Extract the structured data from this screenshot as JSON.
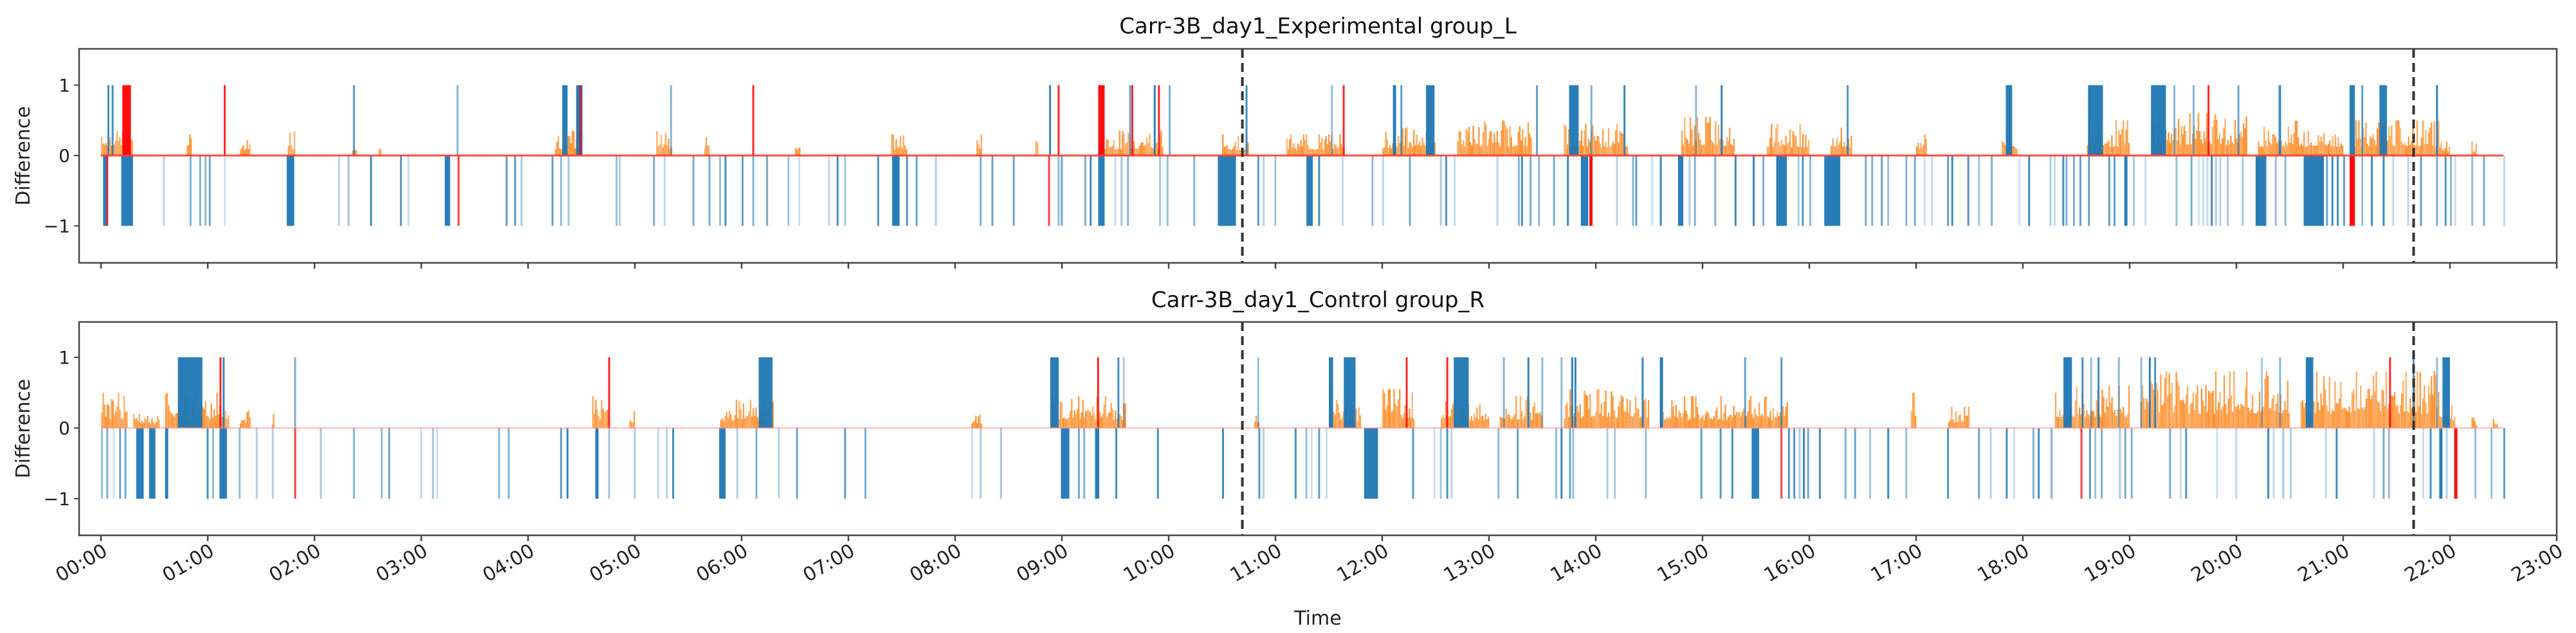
{
  "chart_data": [
    {
      "type": "bar",
      "title": "Carr-3B_day1_Experimental group_L",
      "ylabel": "Difference",
      "xlabel": "",
      "ylim": [
        -1.5,
        1.5
      ],
      "xlim_hours": [
        0,
        23
      ],
      "yticks": [
        "1",
        "0",
        "−1"
      ],
      "ytick_values": [
        1,
        0,
        -1
      ],
      "baseline_color": "#ff3b30",
      "baseline_opacity": 0.9,
      "data_end_hour": 22.5,
      "dashed_lines_hours": [
        10.69,
        21.66
      ],
      "blue_up": [
        0.06,
        0.1,
        2.36,
        3.33,
        [
          4.32,
          4.37
        ],
        [
          4.45,
          4.51
        ],
        5.33,
        8.88,
        9.63,
        9.86,
        10.0,
        10.72,
        11.52,
        [
          12.1,
          12.13
        ],
        12.17,
        [
          12.41,
          12.49
        ],
        13.44,
        [
          13.75,
          13.84
        ],
        13.95,
        14.26,
        14.93,
        15.17,
        16.35,
        [
          17.84,
          17.9
        ],
        [
          18.61,
          18.75
        ],
        [
          19.2,
          19.34
        ],
        19.41,
        19.59,
        20.01,
        20.39,
        20.4,
        [
          21.06,
          21.11
        ],
        21.17,
        [
          21.34,
          21.41
        ],
        21.87
      ],
      "blue_down": [
        [
          0.02,
          0.06
        ],
        [
          0.19,
          0.3
        ],
        0.58,
        0.83,
        0.92,
        0.97,
        1.01,
        1.15,
        [
          1.74,
          1.81
        ],
        2.22,
        2.31,
        2.52,
        2.8,
        2.87,
        [
          3.22,
          3.27
        ],
        3.79,
        3.87,
        3.93,
        4.22,
        4.3,
        4.37,
        4.82,
        4.85,
        5.17,
        5.27,
        5.54,
        5.69,
        5.79,
        5.84,
        6.0,
        6.1,
        6.23,
        6.43,
        6.53,
        6.81,
        6.89,
        6.96,
        7.27,
        [
          7.41,
          7.48
        ],
        7.54,
        7.63,
        7.81,
        8.23,
        8.34,
        8.54,
        8.96,
        8.99,
        9.21,
        9.26,
        [
          9.34,
          9.4
        ],
        9.49,
        9.55,
        9.61,
        9.91,
        9.98,
        10.23,
        [
          10.46,
          10.63
        ],
        10.83,
        10.88,
        10.99,
        [
          11.29,
          11.35
        ],
        11.4,
        11.62,
        11.9,
        12.0,
        12.25,
        12.54,
        12.59,
        12.67,
        13.07,
        13.27,
        13.3,
        13.38,
        13.46,
        13.6,
        13.73,
        [
          13.86,
          13.93
        ],
        14.19,
        14.34,
        14.37,
        14.52,
        14.6,
        [
          14.77,
          14.82
        ],
        14.87,
        14.92,
        15.11,
        15.3,
        15.47,
        15.56,
        [
          15.69,
          15.79
        ],
        15.89,
        15.93,
        16.0,
        [
          16.14,
          16.29
        ],
        16.52,
        16.58,
        16.67,
        16.73,
        16.9,
        16.98,
        17.07,
        17.14,
        17.29,
        17.33,
        17.48,
        17.58,
        17.7,
        17.96,
        18.05,
        18.25,
        18.29,
        18.37,
        18.4,
        18.47,
        18.53,
        18.61,
        18.8,
        18.85,
        [
          18.95,
          18.98
        ],
        19.03,
        19.14,
        19.43,
        19.57,
        19.64,
        19.68,
        19.72,
        19.76,
        19.8,
        19.84,
        19.91,
        20.05,
        [
          20.18,
          20.28
        ],
        20.36,
        20.45,
        [
          20.63,
          20.82
        ],
        20.84,
        20.89,
        20.94,
        21.0,
        21.17,
        21.26,
        21.37,
        21.46,
        21.6,
        21.72,
        21.87,
        21.95,
        22.0,
        22.04,
        22.2,
        22.31,
        22.5
      ],
      "red_up": [
        [
          0.2,
          0.28
        ],
        1.15,
        4.48,
        6.1,
        8.96,
        [
          9.34,
          9.4
        ],
        9.65,
        9.9,
        11.63,
        19.73
      ],
      "red_down": [
        0.05,
        3.34,
        8.87,
        [
          13.94,
          13.97
        ],
        [
          21.06,
          21.11
        ]
      ],
      "activity_bursts": [
        [
          0,
          0.3,
          0.45
        ],
        [
          0.8,
          0.85,
          0.3
        ],
        [
          1.3,
          1.4,
          0.3
        ],
        [
          1.75,
          1.82,
          0.35
        ],
        [
          2.35,
          2.4,
          0.25
        ],
        [
          2.6,
          2.62,
          0.3
        ],
        [
          4.25,
          4.5,
          0.35
        ],
        [
          5.2,
          5.35,
          0.35
        ],
        [
          5.65,
          5.7,
          0.4
        ],
        [
          6.5,
          6.55,
          0.3
        ],
        [
          7.4,
          7.55,
          0.3
        ],
        [
          8.2,
          8.25,
          0.3
        ],
        [
          8.75,
          8.78,
          0.3
        ],
        [
          9.4,
          9.95,
          0.35
        ],
        [
          10.5,
          10.75,
          0.3
        ],
        [
          11.1,
          11.65,
          0.3
        ],
        [
          12.0,
          12.5,
          0.4
        ],
        [
          12.7,
          13.4,
          0.5
        ],
        [
          13.7,
          14.3,
          0.45
        ],
        [
          14.8,
          15.3,
          0.55
        ],
        [
          15.6,
          16.0,
          0.45
        ],
        [
          16.2,
          16.4,
          0.4
        ],
        [
          17.0,
          17.1,
          0.3
        ],
        [
          17.8,
          17.95,
          0.35
        ],
        [
          18.6,
          19.0,
          0.5
        ],
        [
          19.2,
          20.1,
          0.6
        ],
        [
          20.2,
          21.0,
          0.5
        ],
        [
          21.1,
          21.9,
          0.5
        ],
        [
          21.9,
          22.0,
          0.2
        ],
        [
          22.2,
          22.25,
          0.2
        ]
      ]
    },
    {
      "type": "bar",
      "title": "Carr-3B_day1_Control group_R",
      "ylabel": "Difference",
      "xlabel": "Time",
      "ylim": [
        -1.5,
        1.5
      ],
      "xlim_hours": [
        0,
        23
      ],
      "yticks": [
        "1",
        "0",
        "−1"
      ],
      "ytick_values": [
        1,
        0,
        -1
      ],
      "baseline_color": "#ff8a8a",
      "baseline_opacity": 0.45,
      "data_end_hour": 22.5,
      "dashed_lines_hours": [
        10.69,
        21.66
      ],
      "blue_up": [
        [
          0.72,
          0.95
        ],
        1.14,
        1.81,
        [
          6.16,
          6.29
        ],
        [
          8.89,
          8.97
        ],
        9.52,
        9.57,
        10.83,
        [
          11.5,
          11.54
        ],
        [
          11.64,
          11.75
        ],
        [
          12.67,
          12.81
        ],
        13.13,
        13.36,
        13.49,
        13.67,
        13.77,
        13.8,
        14.43,
        [
          14.6,
          14.63
        ],
        15.39,
        15.73,
        [
          18.38,
          18.46
        ],
        18.55,
        18.63,
        18.7,
        18.89,
        19.1,
        19.18,
        19.23,
        20.23,
        20.4,
        [
          20.65,
          20.72
        ],
        21.65,
        21.87,
        [
          21.93,
          22.0
        ]
      ],
      "blue_down": [
        0.0,
        0.05,
        0.11,
        0.17,
        0.22,
        [
          0.33,
          0.4
        ],
        [
          0.45,
          0.51
        ],
        [
          0.6,
          0.63
        ],
        0.99,
        1.04,
        [
          1.11,
          1.18
        ],
        1.29,
        1.45,
        1.6,
        2.05,
        2.36,
        2.62,
        2.69,
        2.99,
        3.1,
        3.14,
        3.72,
        3.81,
        4.3,
        4.36,
        [
          4.63,
          4.66
        ],
        4.75,
        4.99,
        5.21,
        5.29,
        5.35,
        [
          5.79,
          5.85
        ],
        5.95,
        6.13,
        6.34,
        6.51,
        6.96,
        7.15,
        8.15,
        8.23,
        8.42,
        [
          8.99,
          9.07
        ],
        9.15,
        9.2,
        [
          9.31,
          9.35
        ],
        9.5,
        9.89,
        10.5,
        10.84,
        10.88,
        11.18,
        11.28,
        11.33,
        11.4,
        11.47,
        [
          11.83,
          11.96
        ],
        12.28,
        12.48,
        12.54,
        12.6,
        12.64,
        13.08,
        13.26,
        13.62,
        13.67,
        13.75,
        13.78,
        14.1,
        14.17,
        14.46,
        14.98,
        15.16,
        15.27,
        [
          15.46,
          15.53
        ],
        15.8,
        15.85,
        15.9,
        15.94,
        15.98,
        16.09,
        16.33,
        16.42,
        16.56,
        16.73,
        16.9,
        17.29,
        17.58,
        17.69,
        17.84,
        17.91,
        18.09,
        18.14,
        18.26,
        18.62,
        18.67,
        18.73,
        18.9,
        18.95,
        19.01,
        19.37,
        19.47,
        19.52,
        19.81,
        19.99,
        20.29,
        20.34,
        20.43,
        20.5,
        20.83,
        20.93,
        21.28,
        21.37,
        21.42,
        21.74,
        21.81,
        [
          21.9,
          21.93
        ],
        21.96,
        22.23,
        22.38,
        22.5
      ],
      "red_up": [
        1.11,
        4.75,
        9.33,
        12.22,
        12.6,
        21.43
      ],
      "red_down": [
        1.81,
        15.73,
        18.54,
        [
          22.04,
          22.07
        ]
      ],
      "activity_bursts": [
        [
          0.0,
          0.25,
          0.5
        ],
        [
          0.3,
          0.55,
          0.2
        ],
        [
          0.6,
          1.2,
          0.5
        ],
        [
          1.3,
          1.4,
          0.25
        ],
        [
          1.6,
          1.62,
          0.2
        ],
        [
          4.6,
          4.75,
          0.45
        ],
        [
          4.95,
          5.0,
          0.3
        ],
        [
          5.8,
          6.3,
          0.4
        ],
        [
          8.15,
          8.25,
          0.2
        ],
        [
          8.9,
          9.6,
          0.45
        ],
        [
          10.8,
          10.85,
          0.3
        ],
        [
          11.5,
          11.8,
          0.4
        ],
        [
          12.0,
          12.3,
          0.55
        ],
        [
          12.55,
          13.0,
          0.4
        ],
        [
          13.1,
          13.5,
          0.45
        ],
        [
          13.7,
          14.5,
          0.55
        ],
        [
          14.6,
          15.8,
          0.45
        ],
        [
          16.95,
          17.0,
          0.5
        ],
        [
          17.3,
          17.5,
          0.3
        ],
        [
          18.3,
          19.0,
          0.6
        ],
        [
          19.1,
          20.5,
          0.8
        ],
        [
          20.6,
          21.9,
          0.8
        ],
        [
          21.9,
          22.05,
          0.4
        ],
        [
          22.2,
          22.25,
          0.15
        ],
        [
          22.4,
          22.45,
          0.15
        ]
      ]
    }
  ],
  "x_tick_labels": [
    "00:00",
    "01:00",
    "02:00",
    "03:00",
    "04:00",
    "05:00",
    "06:00",
    "07:00",
    "08:00",
    "09:00",
    "10:00",
    "11:00",
    "12:00",
    "13:00",
    "14:00",
    "15:00",
    "16:00",
    "17:00",
    "18:00",
    "19:00",
    "20:00",
    "21:00",
    "22:00",
    "23:00"
  ],
  "colors": {
    "blue": "#1f77b4",
    "orange": "#ff7f0e",
    "red": "#ff0000",
    "axis": "#444444",
    "dashed": "#333333"
  }
}
